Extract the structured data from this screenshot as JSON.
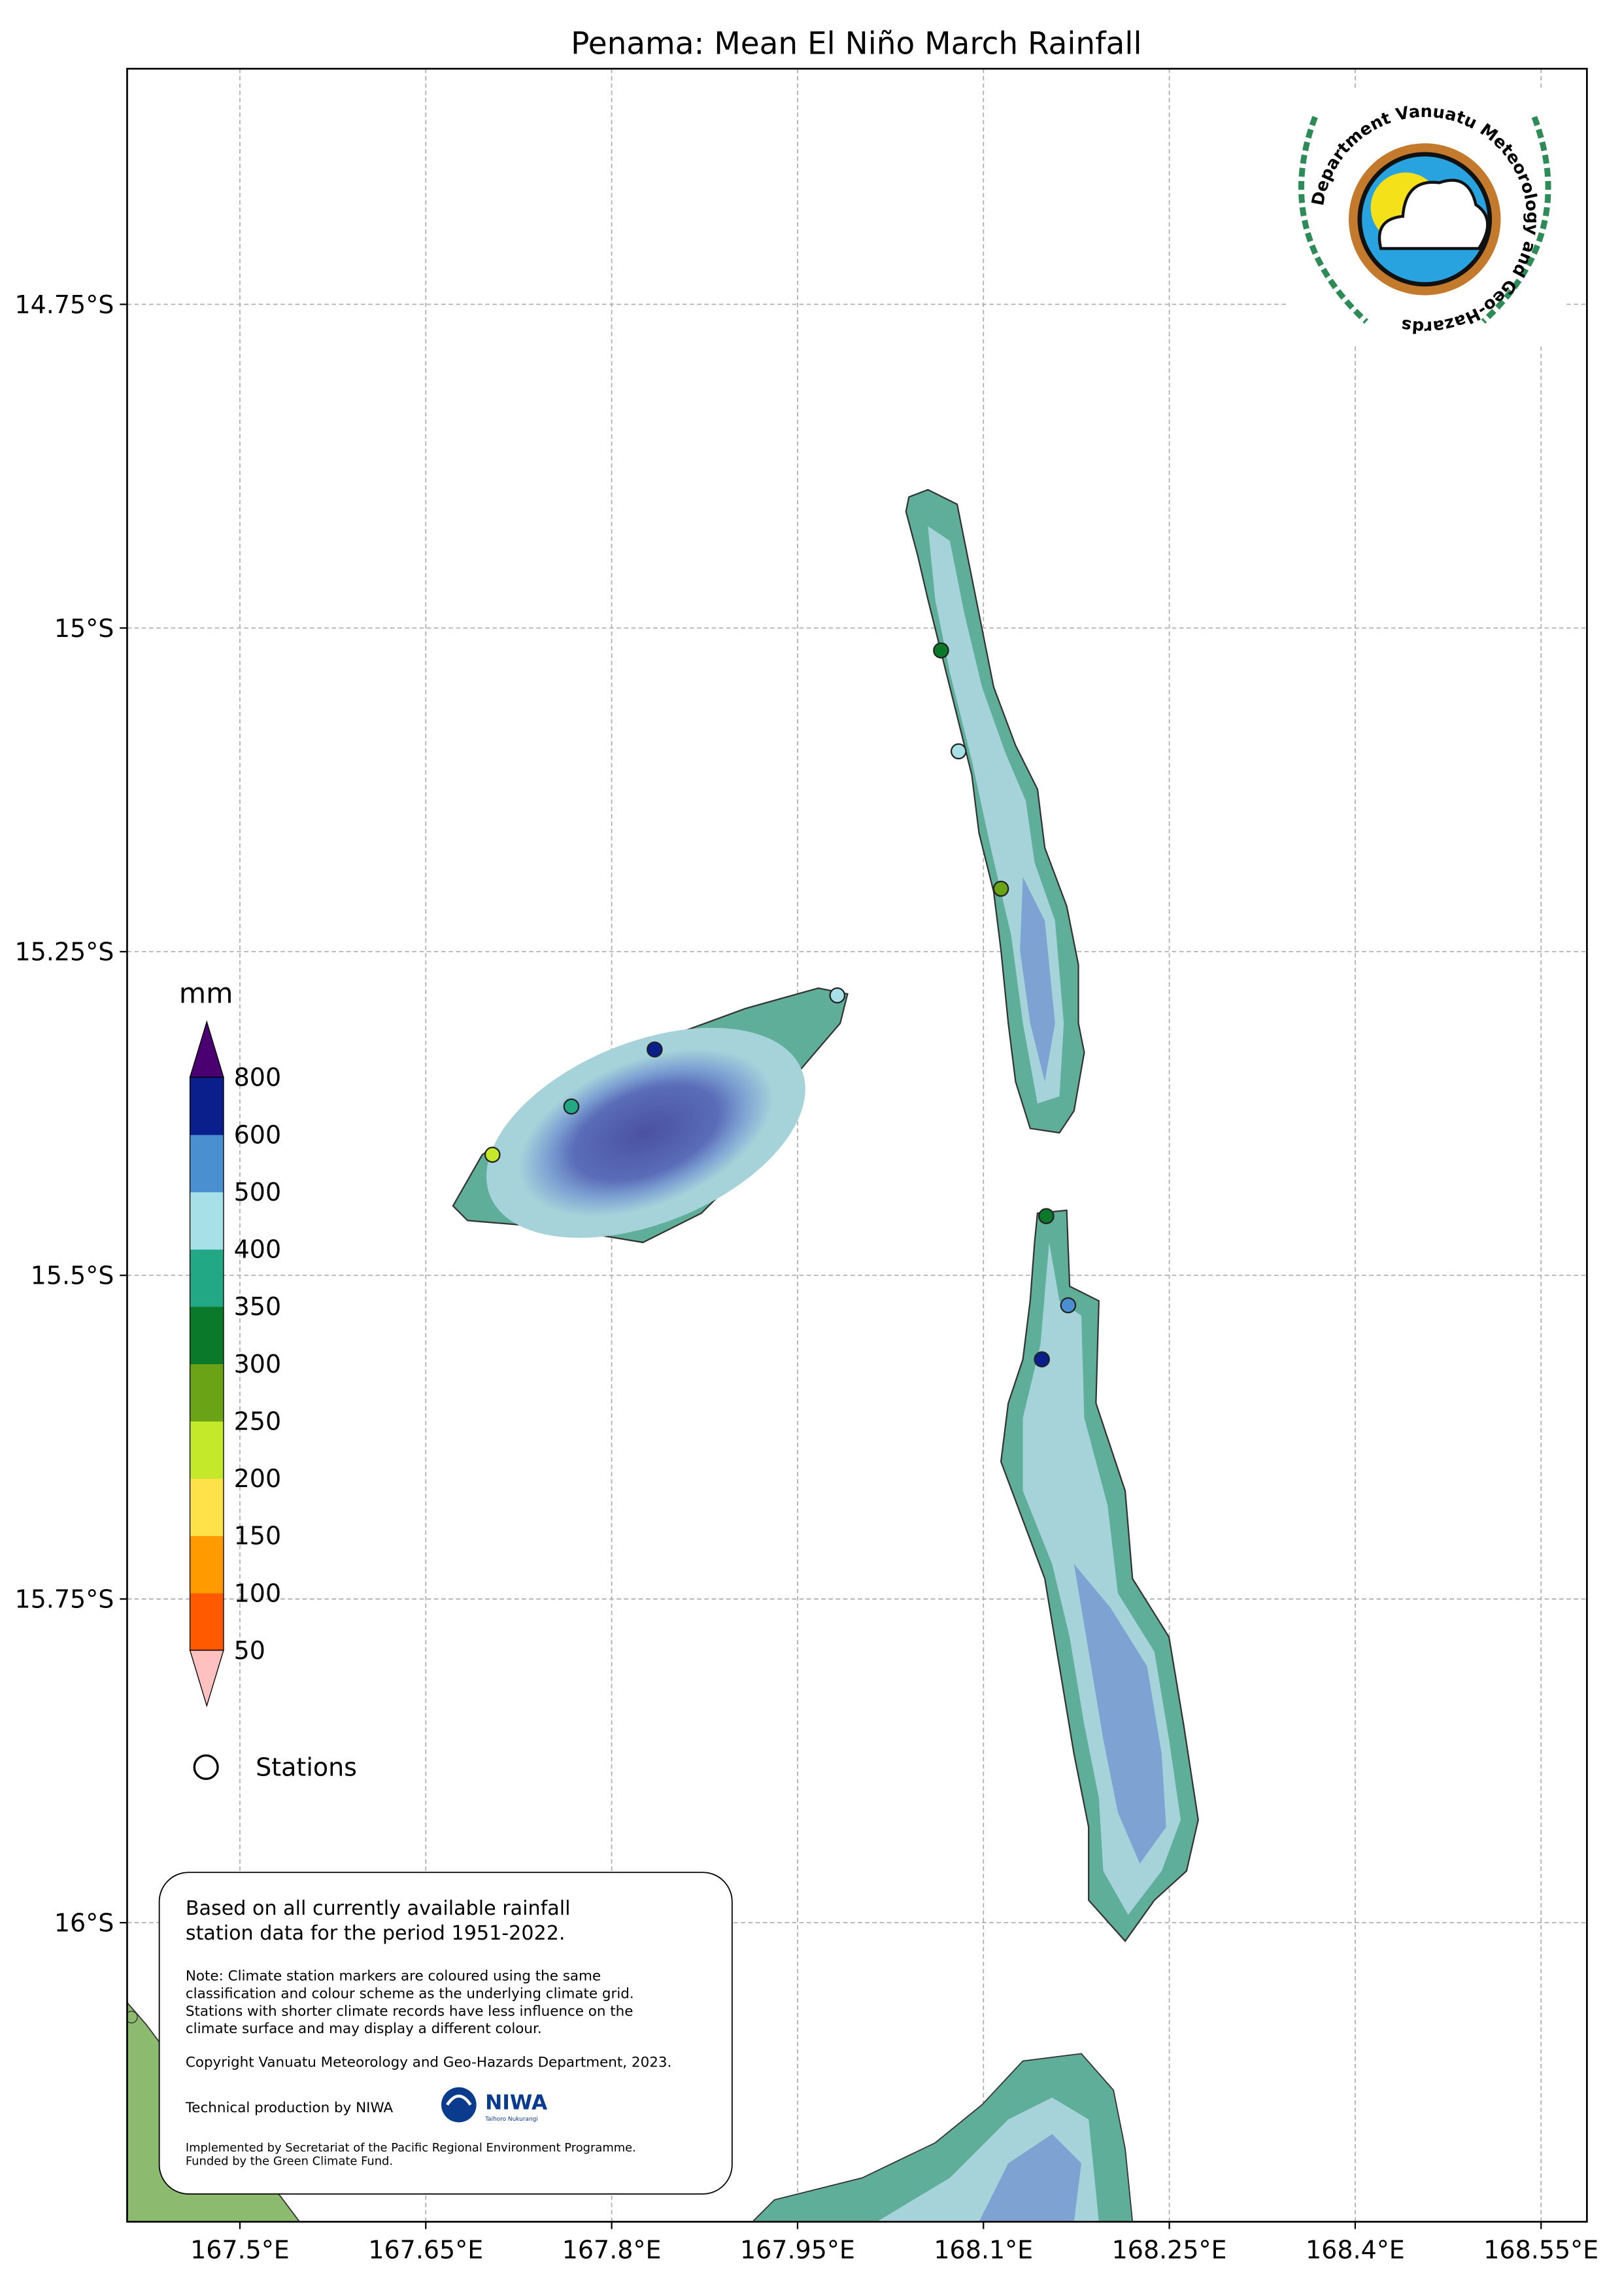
{
  "title": "Penama: Mean El Niño March Rainfall",
  "map": {
    "xlim": [
      167.409,
      168.587
    ],
    "ylim": [
      -14.568,
      -16.231
    ],
    "lon_ticks": [
      {
        "value": 167.5,
        "label": "167.5°E"
      },
      {
        "value": 167.65,
        "label": "167.65°E"
      },
      {
        "value": 167.8,
        "label": "167.8°E"
      },
      {
        "value": 167.95,
        "label": "167.95°E"
      },
      {
        "value": 168.1,
        "label": "168.1°E"
      },
      {
        "value": 168.25,
        "label": "168.25°E"
      },
      {
        "value": 168.4,
        "label": "168.4°E"
      },
      {
        "value": 168.55,
        "label": "168.55°E"
      }
    ],
    "lat_ticks": [
      {
        "value": -14.75,
        "label": "14.75°S"
      },
      {
        "value": -15,
        "label": "15°S"
      },
      {
        "value": -15.25,
        "label": "15.25°S"
      },
      {
        "value": -15.5,
        "label": "15.5°S"
      },
      {
        "value": -15.75,
        "label": "15.75°S"
      },
      {
        "value": -16,
        "label": "16°S"
      }
    ],
    "grid": true
  },
  "legend": {
    "unit": "mm",
    "levels": [
      50,
      100,
      150,
      200,
      250,
      300,
      350,
      400,
      500,
      600,
      800
    ],
    "colors": [
      "#ff5a00",
      "#ff9a00",
      "#ffe14a",
      "#c4e82a",
      "#6aa315",
      "#0a7a2a",
      "#22a884",
      "#a8e0e8",
      "#4a8fd0",
      "#0a1e8c"
    ],
    "under_color": "#ffc0c0",
    "over_color": "#4b0072",
    "stations_label": "Stations"
  },
  "note": {
    "heading": [
      "Based on all currently available rainfall",
      "station data for the period 1951-2022."
    ],
    "lines": [
      "Note: Climate station markers are coloured using the same",
      "classification and colour scheme as the underlying climate grid.",
      "Stations with shorter climate records have less influence on the",
      "climate surface and may display a different colour."
    ],
    "copyright": "Copyright Vanuatu Meteorology and Geo-Hazards Department, 2023.",
    "production": "Technical production by NIWA",
    "funding": [
      "Implemented by Secretariat of the Pacific Regional Environment Programme.",
      "Funded by the Green Climate Fund."
    ]
  },
  "logo": {
    "ring_text": "Department Vanuatu Meteorology and Geo-Hazards"
  },
  "niwa": {
    "name": "NIWA",
    "tagline": "Taihoro Nukurangi"
  }
}
